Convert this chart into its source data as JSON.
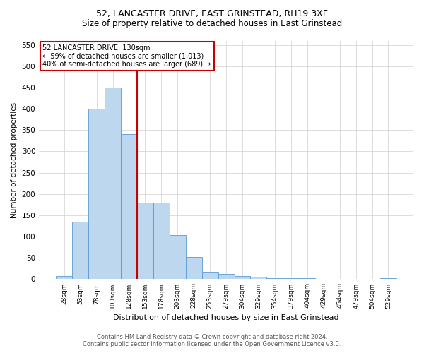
{
  "title": "52, LANCASTER DRIVE, EAST GRINSTEAD, RH19 3XF",
  "subtitle": "Size of property relative to detached houses in East Grinstead",
  "xlabel": "Distribution of detached houses by size in East Grinstead",
  "ylabel": "Number of detached properties",
  "footer_line1": "Contains HM Land Registry data © Crown copyright and database right 2024.",
  "footer_line2": "Contains public sector information licensed under the Open Government Licence v3.0.",
  "categories": [
    "28sqm",
    "53sqm",
    "78sqm",
    "103sqm",
    "128sqm",
    "153sqm",
    "178sqm",
    "203sqm",
    "228sqm",
    "253sqm",
    "279sqm",
    "304sqm",
    "329sqm",
    "354sqm",
    "379sqm",
    "404sqm",
    "429sqm",
    "454sqm",
    "479sqm",
    "504sqm",
    "529sqm"
  ],
  "values": [
    8,
    135,
    400,
    450,
    340,
    180,
    180,
    103,
    52,
    17,
    12,
    8,
    5,
    3,
    2,
    3,
    0,
    0,
    0,
    0,
    3
  ],
  "bar_color": "#bdd7ee",
  "bar_edge_color": "#5b9bd5",
  "vline_color": "#cc0000",
  "annotation_line1": "52 LANCASTER DRIVE: 130sqm",
  "annotation_line2": "← 59% of detached houses are smaller (1,013)",
  "annotation_line3": "40% of semi-detached houses are larger (689) →",
  "annotation_box_color": "#ffffff",
  "annotation_box_edge": "#cc0000",
  "ylim": [
    0,
    560
  ],
  "yticks": [
    0,
    50,
    100,
    150,
    200,
    250,
    300,
    350,
    400,
    450,
    500,
    550
  ],
  "background_color": "#ffffff",
  "grid_color": "#d0d0d0",
  "title_fontsize": 9,
  "subtitle_fontsize": 8.5
}
